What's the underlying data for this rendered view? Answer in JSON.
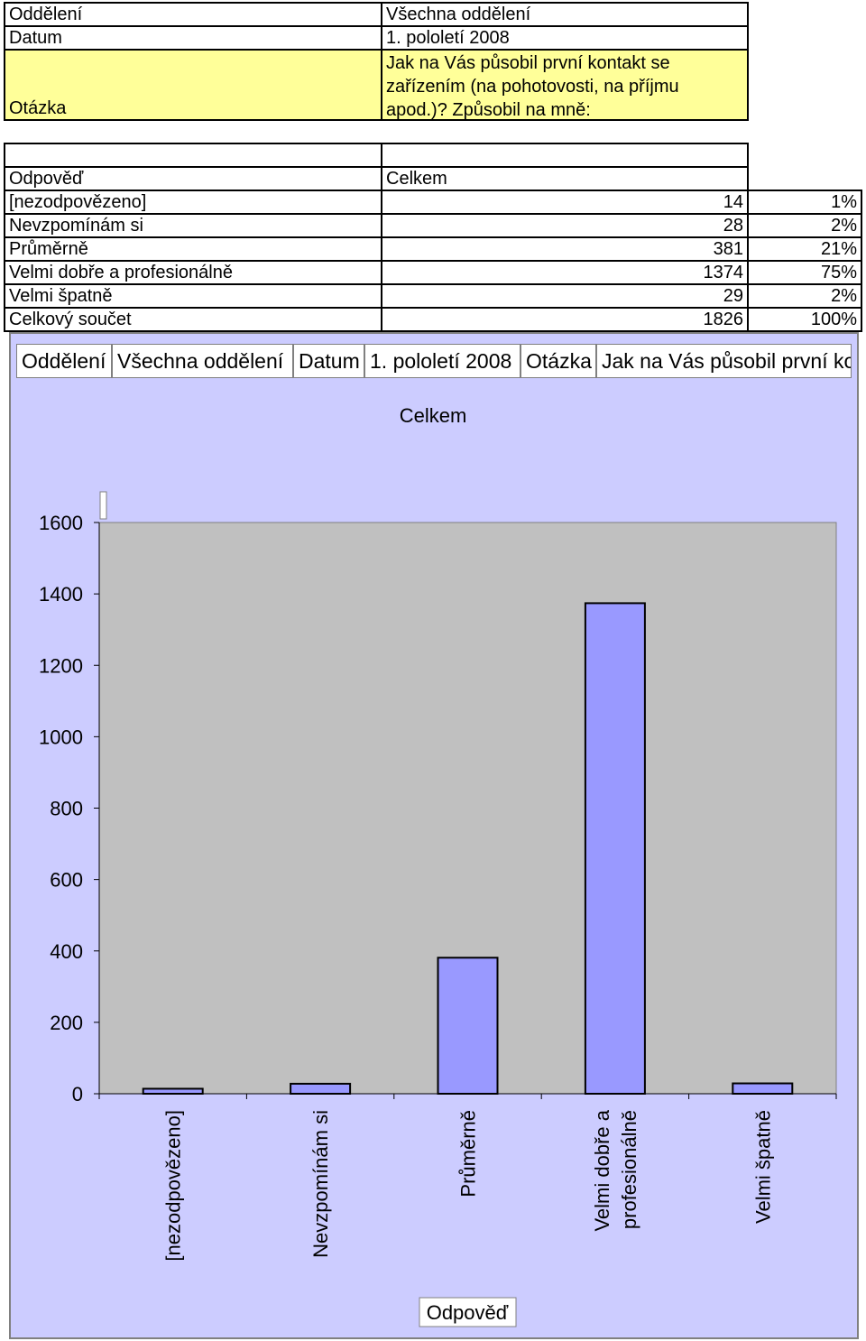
{
  "meta": {
    "department_label": "Oddělení",
    "department_value": "Všechna oddělení",
    "date_label": "Datum",
    "date_value": "1. pololetí 2008",
    "question_label": "Otázka",
    "question_value": "Jak na Vás působil první kontakt se zařízením (na pohotovosti, na příjmu apod.)? Způsobil na mně:"
  },
  "table": {
    "header_answer": "Odpověď",
    "header_total": "Celkem",
    "rows": [
      {
        "label": "[nezodpovězeno]",
        "count": "14",
        "pct": "1%"
      },
      {
        "label": "Nevzpomínám si",
        "count": "28",
        "pct": "2%"
      },
      {
        "label": "Průměrně",
        "count": "381",
        "pct": "21%"
      },
      {
        "label": "Velmi dobře a profesionálně",
        "count": "1374",
        "pct": "75%"
      },
      {
        "label": "Velmi špatně",
        "count": "29",
        "pct": "2%"
      }
    ],
    "total_row": {
      "label": "Celkový součet",
      "count": "1826",
      "pct": "100%"
    }
  },
  "pivot_header": {
    "f1": "Oddělení",
    "f2": "Všechna oddělení",
    "f3": "Datum",
    "f4": "1. pololetí 2008",
    "f5": "Otázka",
    "f6": "Jak na Vás působil první kontakt se zařízením (na pohotovosti, na příjmu apod.)? Způsobil na mně:"
  },
  "colors": {
    "panel": "#ccccff",
    "plot_area": "#c0c0c0",
    "bar": "#9999ff",
    "highlight": "#ffff99"
  },
  "chart_data": {
    "type": "bar",
    "title": "Celkem",
    "xlabel": "Odpověď",
    "ylabel": "",
    "categories": [
      "[nezodpovězeno]",
      "Nevzpomínám si",
      "Průměrně",
      "Velmi dobře a profesionálně",
      "Velmi špatně"
    ],
    "category_lines": [
      [
        "[nezodpovězeno]"
      ],
      [
        "Nevzpomínám si"
      ],
      [
        "Průměrně"
      ],
      [
        "Velmi dobře a",
        "profesionálně"
      ],
      [
        "Velmi špatně"
      ]
    ],
    "values": [
      14,
      28,
      381,
      1374,
      29
    ],
    "ylim": [
      0,
      1600
    ],
    "yticks": [
      0,
      200,
      400,
      600,
      800,
      1000,
      1200,
      1400,
      1600
    ],
    "grid": false,
    "legend": "none"
  }
}
